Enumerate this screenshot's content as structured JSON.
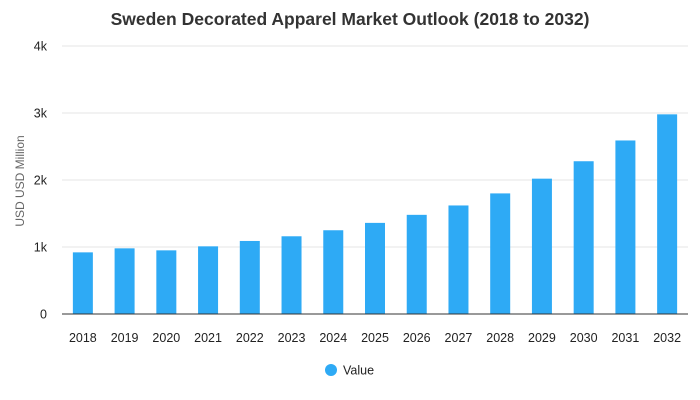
{
  "chart_data": {
    "type": "bar",
    "title": "Sweden Decorated Apparel Market Outlook (2018 to 2032)",
    "xlabel": "",
    "ylabel": "USD USD Million",
    "categories": [
      "2018",
      "2019",
      "2020",
      "2021",
      "2022",
      "2023",
      "2024",
      "2025",
      "2026",
      "2027",
      "2028",
      "2029",
      "2030",
      "2031",
      "2032"
    ],
    "series": [
      {
        "name": "Value",
        "color": "#2eaaf5",
        "values": [
          920,
          980,
          950,
          1010,
          1090,
          1160,
          1250,
          1360,
          1480,
          1620,
          1800,
          2020,
          2280,
          2590,
          2980
        ]
      }
    ],
    "ylim": [
      0,
      4000
    ],
    "yticks": [
      0,
      1000,
      2000,
      3000,
      4000
    ],
    "ytick_labels": [
      "0",
      "1k",
      "2k",
      "3k",
      "4k"
    ],
    "grid": true,
    "legend_position": "bottom"
  }
}
